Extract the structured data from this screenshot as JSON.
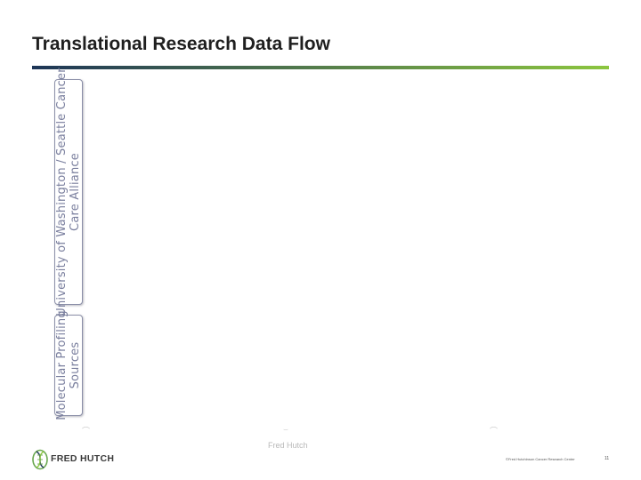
{
  "slide": {
    "title": "Translational Research Data Flow",
    "rule_colors": {
      "left": "#1d3557",
      "right": "#8cc63f"
    }
  },
  "panels": {
    "uw": {
      "line1": "University of Washington / Seattle Cancer",
      "line2": "Care Alliance"
    },
    "molecular": {
      "line1": "Molecular Profiling",
      "line2": "Sources"
    }
  },
  "diagram": {
    "faint_label": "Fred Hutch"
  },
  "footer": {
    "logo_text": "FRED HUTCH",
    "logo_icon": "fred-hutch-helix-icon",
    "copyright": "©Fred Hutchinson Cancer Research Center",
    "page_number": "11"
  }
}
